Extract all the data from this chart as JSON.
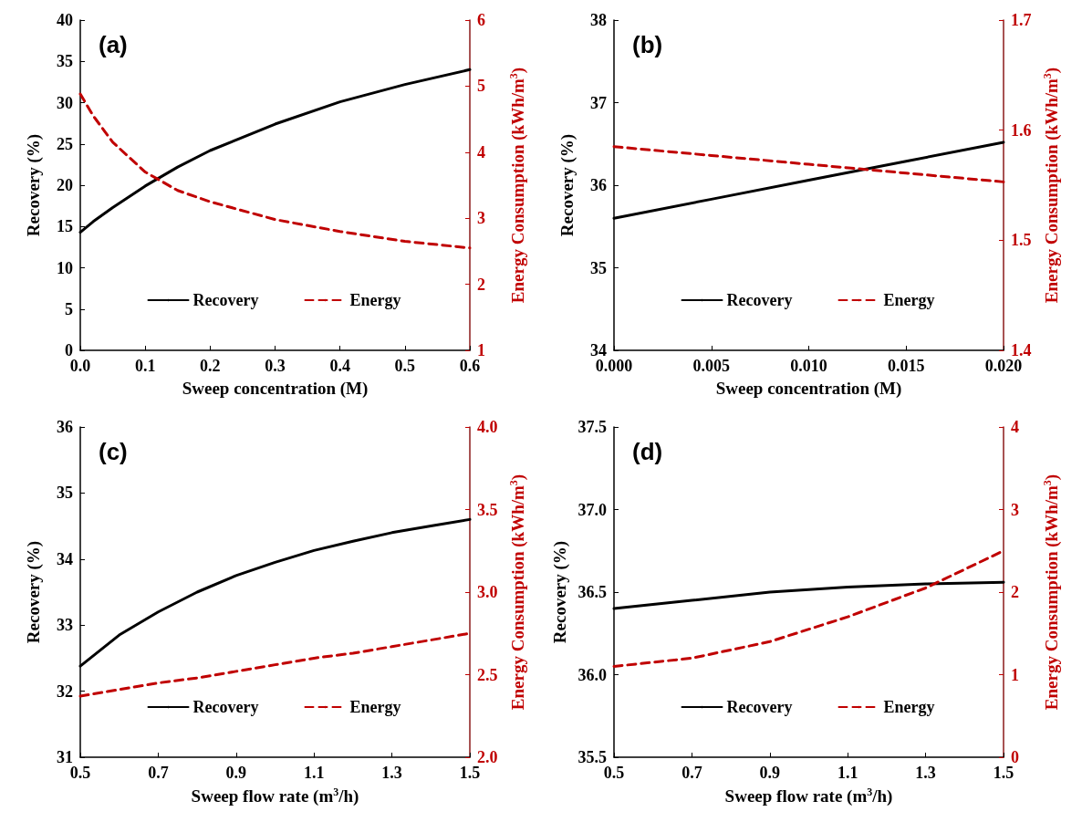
{
  "chart_data": [
    {
      "type": "line",
      "annotations": [
        "(a)"
      ],
      "xlabel": "Sweep concentration (M)",
      "ylabel": "Recovery (%)",
      "y2label": "Energy Consumption (kWh/m$^{3}$)",
      "x": [
        0,
        0.02,
        0.05,
        0.1,
        0.15,
        0.2,
        0.3,
        0.4,
        0.5,
        0.6
      ],
      "xlim": [
        0,
        0.6
      ],
      "xticks": [
        {
          "value": 0,
          "label": "0.0"
        },
        0.1,
        0.2,
        0.3,
        0.4,
        0.5,
        0.6
      ],
      "ylim": [
        0,
        40
      ],
      "yticks": [
        0,
        5,
        10,
        15,
        20,
        25,
        30,
        35,
        40
      ],
      "y2lim": [
        1,
        6
      ],
      "y2ticks": [
        1,
        2,
        3,
        4,
        5,
        6
      ],
      "legend": "bottom",
      "marker": "none",
      "grid": false,
      "series": [
        {
          "name": "Recovery",
          "color": "#000000",
          "line_style": "solid",
          "values": [
            14.3,
            15.6,
            17.3,
            19.9,
            22.2,
            24.2,
            27.4,
            30.1,
            32.2,
            34
          ]
        },
        {
          "name": "Energy",
          "color": "#c00000",
          "line_style": "dashed",
          "axis": "y2",
          "values": [
            4.88,
            4.55,
            4.15,
            3.7,
            3.42,
            3.25,
            2.98,
            2.8,
            2.65,
            2.55
          ]
        }
      ]
    },
    {
      "type": "line",
      "annotations": [
        "(b)"
      ],
      "xlabel": "Sweep concentration (M)",
      "ylabel": "Recovery (%)",
      "y2label": "Energy Consumption (kWh/m$^{3}$)",
      "x": [
        0,
        0.005,
        0.01,
        0.015,
        0.02
      ],
      "xlim": [
        0,
        0.02
      ],
      "xticks": [
        {
          "value": 0,
          "label": "0.000"
        },
        {
          "value": 0.005,
          "label": "0.005"
        },
        {
          "value": 0.01,
          "label": "0.010"
        },
        {
          "value": 0.015,
          "label": "0.015"
        },
        {
          "value": 0.02,
          "label": "0.020"
        }
      ],
      "ylim": [
        34,
        38
      ],
      "yticks": [
        34,
        35,
        36,
        37,
        38
      ],
      "y2lim": [
        1.4,
        1.7
      ],
      "y2ticks": [
        1.4,
        1.5,
        1.6,
        1.7
      ],
      "legend": "bottom",
      "marker": "none",
      "grid": false,
      "series": [
        {
          "name": "Recovery",
          "color": "#000000",
          "line_style": "solid",
          "values": [
            35.6,
            35.83,
            36.06,
            36.29,
            36.52
          ]
        },
        {
          "name": "Energy",
          "color": "#c00000",
          "line_style": "dashed",
          "axis": "y2",
          "values": [
            1.585,
            1.577,
            1.569,
            1.561,
            1.553
          ]
        }
      ]
    },
    {
      "type": "line",
      "annotations": [
        "(c)"
      ],
      "xlabel": "Sweep flow rate (m$^{3}$/h)",
      "ylabel": "Recovery (%)",
      "y2label": "Energy Consumption (kWh/m$^{3}$)",
      "x": [
        0.5,
        0.6,
        0.7,
        0.8,
        0.9,
        1.0,
        1.1,
        1.2,
        1.3,
        1.4,
        1.5
      ],
      "xlim": [
        0.5,
        1.5
      ],
      "xticks": [
        0.5,
        0.7,
        0.9,
        1.1,
        1.3,
        1.5
      ],
      "ylim": [
        31,
        36
      ],
      "yticks": [
        31,
        32,
        33,
        34,
        35,
        36
      ],
      "y2lim": [
        2,
        4
      ],
      "y2ticks": [
        {
          "value": 2,
          "label": "2.0"
        },
        2.5,
        {
          "value": 3,
          "label": "3.0"
        },
        3.5,
        {
          "value": 4,
          "label": "4.0"
        }
      ],
      "legend": "bottom",
      "marker": "none",
      "grid": false,
      "series": [
        {
          "name": "Recovery",
          "color": "#000000",
          "line_style": "solid",
          "values": [
            32.38,
            32.85,
            33.2,
            33.5,
            33.75,
            33.95,
            34.13,
            34.27,
            34.4,
            34.5,
            34.6
          ]
        },
        {
          "name": "Energy",
          "color": "#c00000",
          "line_style": "dashed",
          "axis": "y2",
          "values": [
            2.37,
            2.41,
            2.45,
            2.48,
            2.52,
            2.56,
            2.6,
            2.63,
            2.67,
            2.71,
            2.75
          ]
        }
      ]
    },
    {
      "type": "line",
      "annotations": [
        "(d)"
      ],
      "xlabel": "Sweep flow rate (m$^{3}$/h)",
      "ylabel": "Recovery (%)",
      "y2label": "Energy Consumption (kWh/m$^{3}$)",
      "x": [
        0.5,
        0.7,
        0.9,
        1.1,
        1.3,
        1.5
      ],
      "xlim": [
        0.5,
        1.5
      ],
      "xticks": [
        0.5,
        0.7,
        0.9,
        1.1,
        1.3,
        1.5
      ],
      "ylim": [
        35.5,
        37.5
      ],
      "yticks": [
        35.5,
        {
          "value": 36,
          "label": "36.0"
        },
        36.5,
        {
          "value": 37,
          "label": "37.0"
        },
        37.5
      ],
      "y2lim": [
        0,
        4
      ],
      "y2ticks": [
        0,
        1,
        2,
        3,
        4
      ],
      "legend": "bottom",
      "marker": "none",
      "grid": false,
      "series": [
        {
          "name": "Recovery",
          "color": "#000000",
          "line_style": "solid",
          "values": [
            36.4,
            36.45,
            36.5,
            36.53,
            36.55,
            36.56
          ]
        },
        {
          "name": "Energy",
          "color": "#c00000",
          "line_style": "dashed",
          "axis": "y2",
          "values": [
            1.1,
            1.2,
            1.4,
            1.7,
            2.05,
            2.5
          ]
        }
      ]
    }
  ]
}
